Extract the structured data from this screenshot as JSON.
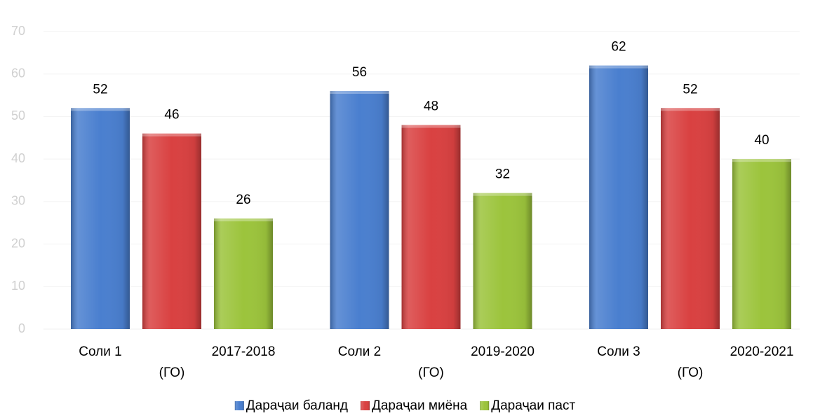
{
  "chart_data": {
    "type": "bar",
    "categories": [
      [
        "Соли 1",
        "(ГО)",
        "2017-2018"
      ],
      [
        "Соли 2",
        "(ГО)",
        "2019-2020"
      ],
      [
        "Соли 3",
        "(ГО)",
        "2020-2021"
      ]
    ],
    "series": [
      {
        "name": "Дараҷаи баланд",
        "color": "#4a7fcf",
        "values": [
          52,
          56,
          62
        ]
      },
      {
        "name": "Дараҷаи миёна",
        "color": "#d94141",
        "values": [
          46,
          48,
          52
        ]
      },
      {
        "name": "Дараҷаи паст",
        "color": "#9cc43c",
        "values": [
          26,
          32,
          40
        ]
      }
    ],
    "ylim": [
      0,
      70
    ],
    "yticks": [
      0,
      10,
      20,
      30,
      40,
      50,
      60,
      70
    ],
    "grid": true,
    "legend": "bottom"
  }
}
